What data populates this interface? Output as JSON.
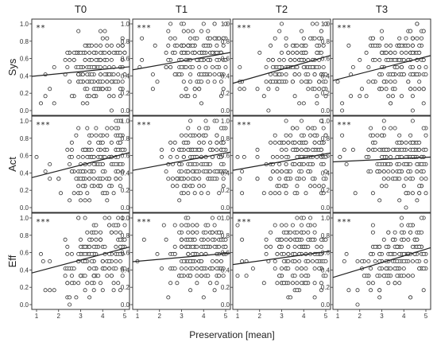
{
  "chart_data": {
    "type": "scatter",
    "x_label": "Preservation [mean]",
    "columns": [
      "T0",
      "T1",
      "T2",
      "T3"
    ],
    "rows": [
      "Sys",
      "Act",
      "Eff"
    ],
    "xlim": [
      1,
      5
    ],
    "ylim": [
      0,
      1
    ],
    "x_ticks": [
      "1",
      "2",
      "3",
      "4",
      "5"
    ],
    "y_ticks": [
      "0.0",
      "0.2",
      "0.4",
      "0.6",
      "0.8",
      "1.0"
    ],
    "grid": false,
    "panels": [
      {
        "row": "Sys",
        "col": "T0",
        "significance": "**",
        "fit_y_at_x1": 0.4,
        "fit_y_at_x5": 0.5,
        "n_points": 170
      },
      {
        "row": "Sys",
        "col": "T1",
        "significance": "***",
        "fit_y_at_x1": 0.48,
        "fit_y_at_x5": 0.66,
        "n_points": 170
      },
      {
        "row": "Sys",
        "col": "T2",
        "significance": "***",
        "fit_y_at_x1": 0.33,
        "fit_y_at_x5": 0.62,
        "n_points": 170
      },
      {
        "row": "Sys",
        "col": "T3",
        "significance": "***",
        "fit_y_at_x1": 0.36,
        "fit_y_at_x5": 0.62,
        "n_points": 170
      },
      {
        "row": "Act",
        "col": "T0",
        "significance": "***",
        "fit_y_at_x1": 0.36,
        "fit_y_at_x5": 0.62,
        "n_points": 170
      },
      {
        "row": "Act",
        "col": "T1",
        "significance": "***",
        "fit_y_at_x1": 0.44,
        "fit_y_at_x5": 0.63,
        "n_points": 170
      },
      {
        "row": "Act",
        "col": "T2",
        "significance": "***",
        "fit_y_at_x1": 0.44,
        "fit_y_at_x5": 0.62,
        "n_points": 170
      },
      {
        "row": "Act",
        "col": "T3",
        "significance": "***",
        "fit_y_at_x1": 0.53,
        "fit_y_at_x5": 0.58,
        "n_points": 170
      },
      {
        "row": "Eff",
        "col": "T0",
        "significance": "***",
        "fit_y_at_x1": 0.38,
        "fit_y_at_x5": 0.65,
        "n_points": 170
      },
      {
        "row": "Eff",
        "col": "T1",
        "significance": "***",
        "fit_y_at_x1": 0.5,
        "fit_y_at_x5": 0.59,
        "n_points": 170
      },
      {
        "row": "Eff",
        "col": "T2",
        "significance": "***",
        "fit_y_at_x1": 0.47,
        "fit_y_at_x5": 0.61,
        "n_points": 170
      },
      {
        "row": "Eff",
        "col": "T3",
        "significance": "***",
        "fit_y_at_x1": 0.33,
        "fit_y_at_x5": 0.64,
        "n_points": 170
      }
    ]
  }
}
